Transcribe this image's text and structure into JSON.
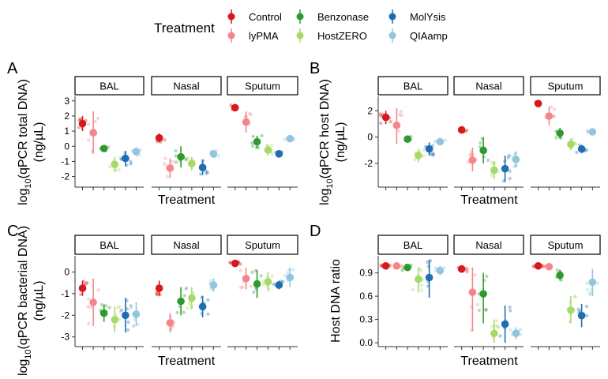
{
  "legend": {
    "title": "Treatment",
    "items": [
      {
        "name": "Control",
        "color": "#d7191c"
      },
      {
        "name": "lyPMA",
        "color": "#f4868b"
      },
      {
        "name": "Benzonase",
        "color": "#2e9a2e"
      },
      {
        "name": "HostZERO",
        "color": "#a6d96a"
      },
      {
        "name": "MolYsis",
        "color": "#1f6db3"
      },
      {
        "name": "QIAamp",
        "color": "#92c5de"
      }
    ]
  },
  "chart_data": [
    {
      "panel": "A",
      "type": "scatter",
      "ylabel": "log10(qPCR total DNA) (ng/µL)",
      "xlabel": "Treatment",
      "ylim": [
        -2.7,
        3.3
      ],
      "yticks": [
        -2,
        -1,
        0,
        1,
        2,
        3
      ],
      "facets": [
        "BAL",
        "Nasal",
        "Sputum"
      ],
      "series": [
        {
          "name": "Control",
          "values": {
            "BAL": [
              1.5,
              1.0,
              2.0
            ],
            "Nasal": [
              0.55,
              0.25,
              0.85
            ],
            "Sputum": [
              2.55,
              2.3,
              2.8
            ]
          }
        },
        {
          "name": "lyPMA",
          "values": {
            "BAL": [
              0.9,
              -0.5,
              2.3
            ],
            "Nasal": [
              -1.45,
              -2.1,
              -0.8
            ],
            "Sputum": [
              1.6,
              0.9,
              2.3
            ]
          }
        },
        {
          "name": "Benzonase",
          "values": {
            "BAL": [
              -0.15,
              -0.3,
              0.0
            ],
            "Nasal": [
              -0.7,
              -1.4,
              0.0
            ],
            "Sputum": [
              0.3,
              -0.1,
              0.7
            ]
          }
        },
        {
          "name": "HostZERO",
          "values": {
            "BAL": [
              -1.2,
              -1.7,
              -0.7
            ],
            "Nasal": [
              -1.15,
              -1.6,
              -0.7
            ],
            "Sputum": [
              -0.25,
              -0.6,
              0.1
            ]
          }
        },
        {
          "name": "MolYsis",
          "values": {
            "BAL": [
              -0.8,
              -1.3,
              -0.3
            ],
            "Nasal": [
              -1.4,
              -1.9,
              -0.9
            ],
            "Sputum": [
              -0.5,
              -0.7,
              -0.3
            ]
          }
        },
        {
          "name": "QIAamp",
          "values": {
            "BAL": [
              -0.35,
              -0.6,
              -0.1
            ],
            "Nasal": [
              -0.5,
              -0.7,
              -0.3
            ],
            "Sputum": [
              0.5,
              0.4,
              0.6
            ]
          }
        }
      ]
    },
    {
      "panel": "B",
      "type": "scatter",
      "ylabel": "log10(qPCR host DNA) (ng/µL)",
      "xlabel": "Treatment",
      "ylim": [
        -3.8,
        3.1
      ],
      "yticks": [
        -2,
        0,
        2
      ],
      "facets": [
        "BAL",
        "Nasal",
        "Sputum"
      ],
      "series": [
        {
          "name": "Control",
          "values": {
            "BAL": [
              1.5,
              1.0,
              2.0
            ],
            "Nasal": [
              0.55,
              0.3,
              0.8
            ],
            "Sputum": [
              2.55,
              2.3,
              2.8
            ]
          }
        },
        {
          "name": "lyPMA",
          "values": {
            "BAL": [
              0.9,
              -0.5,
              2.2
            ],
            "Nasal": [
              -1.75,
              -2.6,
              -0.8
            ],
            "Sputum": [
              1.6,
              0.9,
              2.3
            ]
          }
        },
        {
          "name": "Benzonase",
          "values": {
            "BAL": [
              -0.15,
              -0.4,
              0.1
            ],
            "Nasal": [
              -1.0,
              -2.0,
              0.0
            ],
            "Sputum": [
              0.3,
              -0.1,
              0.7
            ]
          }
        },
        {
          "name": "HostZERO",
          "values": {
            "BAL": [
              -1.4,
              -1.9,
              -0.9
            ],
            "Nasal": [
              -2.5,
              -3.2,
              -1.8
            ],
            "Sputum": [
              -0.55,
              -1.0,
              -0.1
            ]
          }
        },
        {
          "name": "MolYsis",
          "values": {
            "BAL": [
              -0.9,
              -1.4,
              -0.4
            ],
            "Nasal": [
              -2.4,
              -3.4,
              -1.4
            ],
            "Sputum": [
              -0.9,
              -1.2,
              -0.6
            ]
          }
        },
        {
          "name": "QIAamp",
          "values": {
            "BAL": [
              -0.35,
              -0.6,
              -0.1
            ],
            "Nasal": [
              -1.7,
              -2.3,
              -1.1
            ],
            "Sputum": [
              0.4,
              0.3,
              0.5
            ]
          }
        }
      ]
    },
    {
      "panel": "C",
      "type": "scatter",
      "ylabel": "log10(qPCR bacterial DNA) (ng/µL)",
      "xlabel": "Treatment",
      "ylim": [
        -3.45,
        0.75
      ],
      "yticks": [
        -3,
        -2,
        -1,
        0
      ],
      "facets": [
        "BAL",
        "Nasal",
        "Sputum"
      ],
      "series": [
        {
          "name": "Control",
          "values": {
            "BAL": [
              -0.75,
              -1.1,
              -0.4
            ],
            "Nasal": [
              -0.75,
              -1.1,
              -0.4
            ],
            "Sputum": [
              0.4,
              0.3,
              0.5
            ]
          }
        },
        {
          "name": "lyPMA",
          "values": {
            "BAL": [
              -1.4,
              -2.5,
              -0.3
            ],
            "Nasal": [
              -2.35,
              -2.8,
              -1.9
            ],
            "Sputum": [
              -0.3,
              -0.8,
              0.2
            ]
          }
        },
        {
          "name": "Benzonase",
          "values": {
            "BAL": [
              -1.9,
              -2.3,
              -1.5
            ],
            "Nasal": [
              -1.35,
              -2.0,
              -0.7
            ],
            "Sputum": [
              -0.55,
              -1.2,
              0.1
            ]
          }
        },
        {
          "name": "HostZERO",
          "values": {
            "BAL": [
              -2.2,
              -2.8,
              -1.6
            ],
            "Nasal": [
              -1.2,
              -1.7,
              -0.7
            ],
            "Sputum": [
              -0.45,
              -0.9,
              0.0
            ]
          }
        },
        {
          "name": "MolYsis",
          "values": {
            "BAL": [
              -2.0,
              -2.8,
              -1.2
            ],
            "Nasal": [
              -1.6,
              -2.1,
              -1.1
            ],
            "Sputum": [
              -0.6,
              -0.8,
              -0.4
            ]
          }
        },
        {
          "name": "QIAamp",
          "values": {
            "BAL": [
              -1.95,
              -2.5,
              -1.4
            ],
            "Nasal": [
              -0.6,
              -0.9,
              -0.3
            ],
            "Sputum": [
              -0.25,
              -0.7,
              0.2
            ]
          }
        }
      ]
    },
    {
      "panel": "D",
      "type": "scatter",
      "ylabel": "Host DNA ratio",
      "xlabel": "Treatment",
      "ylim": [
        -0.05,
        1.12
      ],
      "yticks": [
        0.0,
        0.3,
        0.6,
        0.9
      ],
      "yticklabels": [
        "0.0",
        "0.3",
        "0.6",
        "0.9"
      ],
      "facets": [
        "BAL",
        "Nasal",
        "Sputum"
      ],
      "series": [
        {
          "name": "Control",
          "values": {
            "BAL": [
              0.99,
              0.98,
              1.0
            ],
            "Nasal": [
              0.95,
              0.92,
              0.98
            ],
            "Sputum": [
              0.99,
              0.98,
              1.0
            ]
          }
        },
        {
          "name": "lyPMA",
          "values": {
            "BAL": [
              0.99,
              0.97,
              1.0
            ],
            "Nasal": [
              0.65,
              0.15,
              0.97
            ],
            "Sputum": [
              0.98,
              0.97,
              0.99
            ]
          }
        },
        {
          "name": "Benzonase",
          "values": {
            "BAL": [
              0.97,
              0.93,
              1.0
            ],
            "Nasal": [
              0.63,
              0.25,
              0.9
            ],
            "Sputum": [
              0.87,
              0.8,
              0.94
            ]
          }
        },
        {
          "name": "HostZERO",
          "values": {
            "BAL": [
              0.82,
              0.65,
              0.97
            ],
            "Nasal": [
              0.12,
              0.0,
              0.3
            ],
            "Sputum": [
              0.42,
              0.25,
              0.6
            ]
          }
        },
        {
          "name": "MolYsis",
          "values": {
            "BAL": [
              0.84,
              0.58,
              1.07
            ],
            "Nasal": [
              0.24,
              0.0,
              0.48
            ],
            "Sputum": [
              0.35,
              0.2,
              0.5
            ]
          }
        },
        {
          "name": "QIAamp",
          "values": {
            "BAL": [
              0.93,
              0.87,
              0.99
            ],
            "Nasal": [
              0.12,
              0.05,
              0.2
            ],
            "Sputum": [
              0.78,
              0.6,
              0.95
            ]
          }
        }
      ]
    }
  ]
}
